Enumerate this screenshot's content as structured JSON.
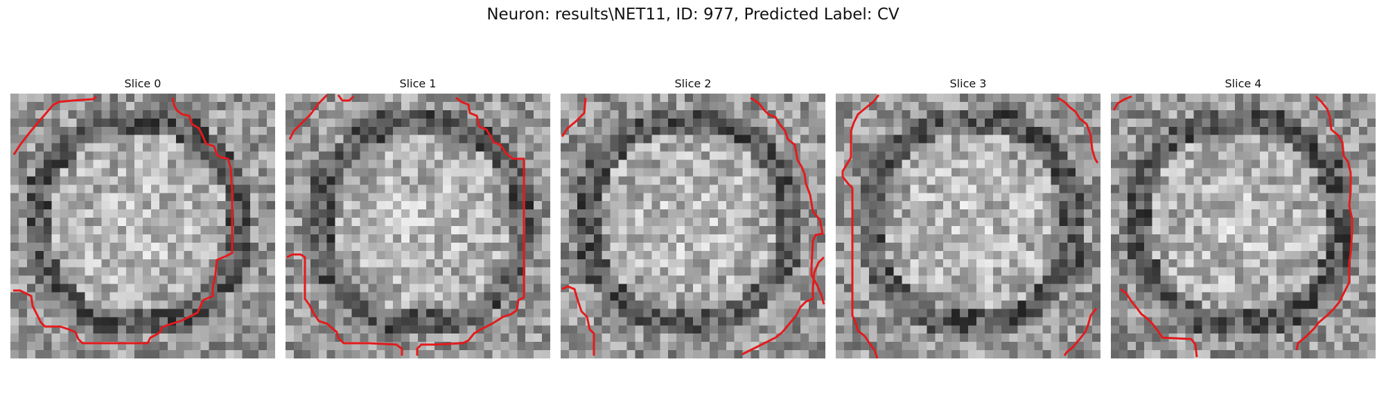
{
  "figure": {
    "title": "Neuron: results\\NET11, ID: 977, Predicted Label: CV",
    "contour_color": "#e41a1c"
  },
  "panels": [
    {
      "title": "Slice 0"
    },
    {
      "title": "Slice 1"
    },
    {
      "title": "Slice 2"
    },
    {
      "title": "Slice 3"
    },
    {
      "title": "Slice 4"
    }
  ]
}
